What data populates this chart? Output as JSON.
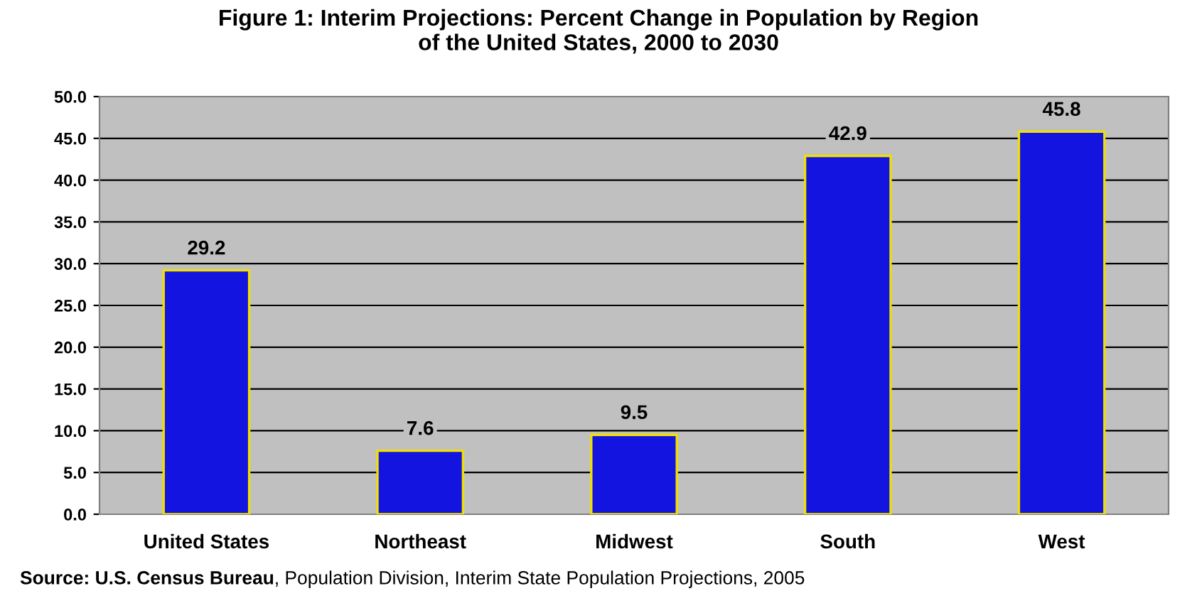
{
  "chart_data": {
    "type": "bar",
    "title": "Figure 1: Interim Projections: Percent Change in Population by Region\nof the United States, 2000 to 2030",
    "categories": [
      "United States",
      "Northeast",
      "Midwest",
      "South",
      "West"
    ],
    "values": [
      29.2,
      7.6,
      9.5,
      42.9,
      45.8
    ],
    "color": "#1414e0",
    "data_labels": true,
    "ylim": [
      0,
      50
    ],
    "yticks": [
      {
        "value": 0,
        "label": "0.0"
      },
      {
        "value": 5,
        "label": "5.0"
      },
      {
        "value": 10,
        "label": "10.0"
      },
      {
        "value": 15,
        "label": "15.0"
      },
      {
        "value": 20,
        "label": "20.0"
      },
      {
        "value": 25,
        "label": "25.0"
      },
      {
        "value": 30,
        "label": "30.0"
      },
      {
        "value": 35,
        "label": "35.0"
      },
      {
        "value": 40,
        "label": "40.0"
      },
      {
        "value": 45,
        "label": "45.0"
      },
      {
        "value": 50,
        "label": "50.0"
      }
    ],
    "grid": "y",
    "annotations": [
      "Source: U.S. Census Bureau",
      ", Population Division, Interim State Population Projections, 2005"
    ]
  }
}
